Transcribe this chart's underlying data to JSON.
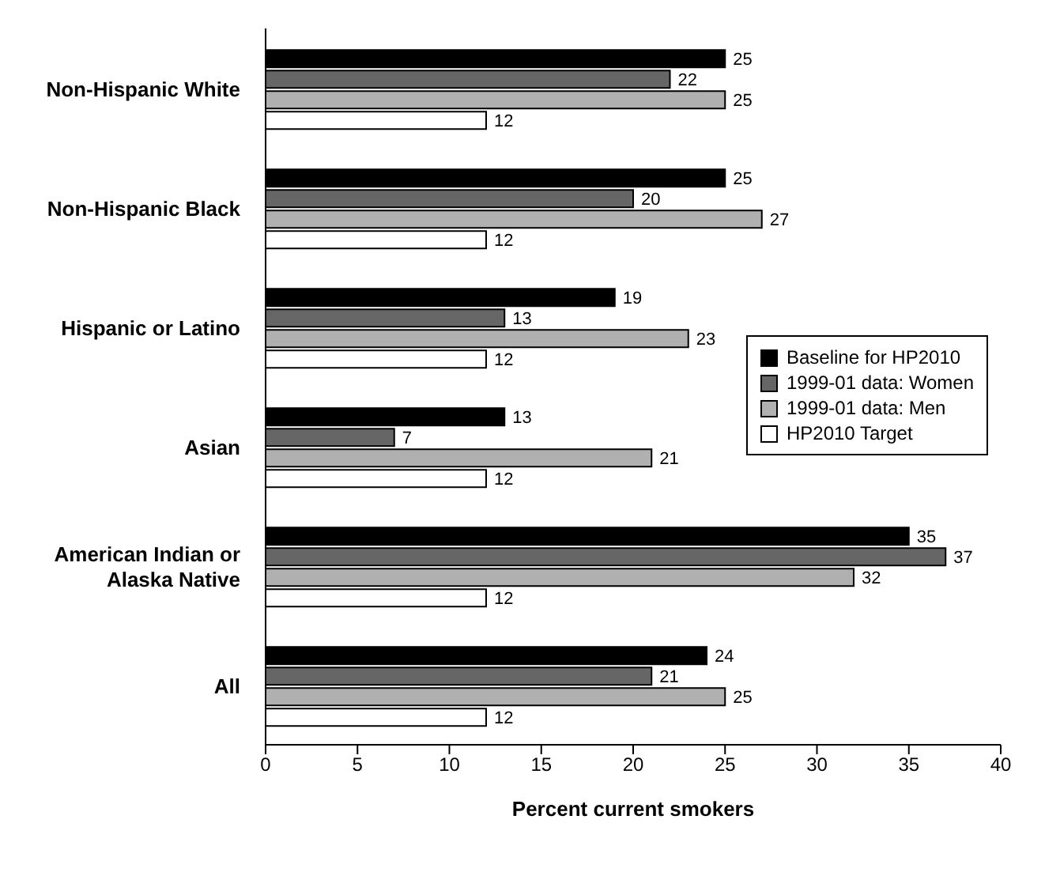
{
  "chart_data": {
    "type": "bar",
    "orientation": "horizontal",
    "xlabel": "Percent current smokers",
    "categories": [
      "Non-Hispanic White",
      "Non-Hispanic Black",
      "Hispanic or Latino",
      "Asian",
      "American Indian or Alaska Native",
      "All"
    ],
    "series": [
      {
        "name": "Baseline for HP2010",
        "color": "#000000",
        "values": [
          25,
          25,
          19,
          13,
          35,
          24
        ]
      },
      {
        "name": "1999-01 data: Women",
        "color": "#666666",
        "values": [
          22,
          20,
          13,
          7,
          37,
          21
        ]
      },
      {
        "name": "1999-01 data: Men",
        "color": "#b0b0b0",
        "values": [
          25,
          27,
          23,
          21,
          32,
          25
        ]
      },
      {
        "name": "HP2010 Target",
        "color": "#ffffff",
        "values": [
          12,
          12,
          12,
          12,
          12,
          12
        ]
      }
    ],
    "xlim": [
      0,
      40
    ],
    "xticks": [
      0,
      5,
      10,
      15,
      20,
      25,
      30,
      35,
      40
    ],
    "data_labels": true,
    "legend": "right",
    "grid": false
  }
}
